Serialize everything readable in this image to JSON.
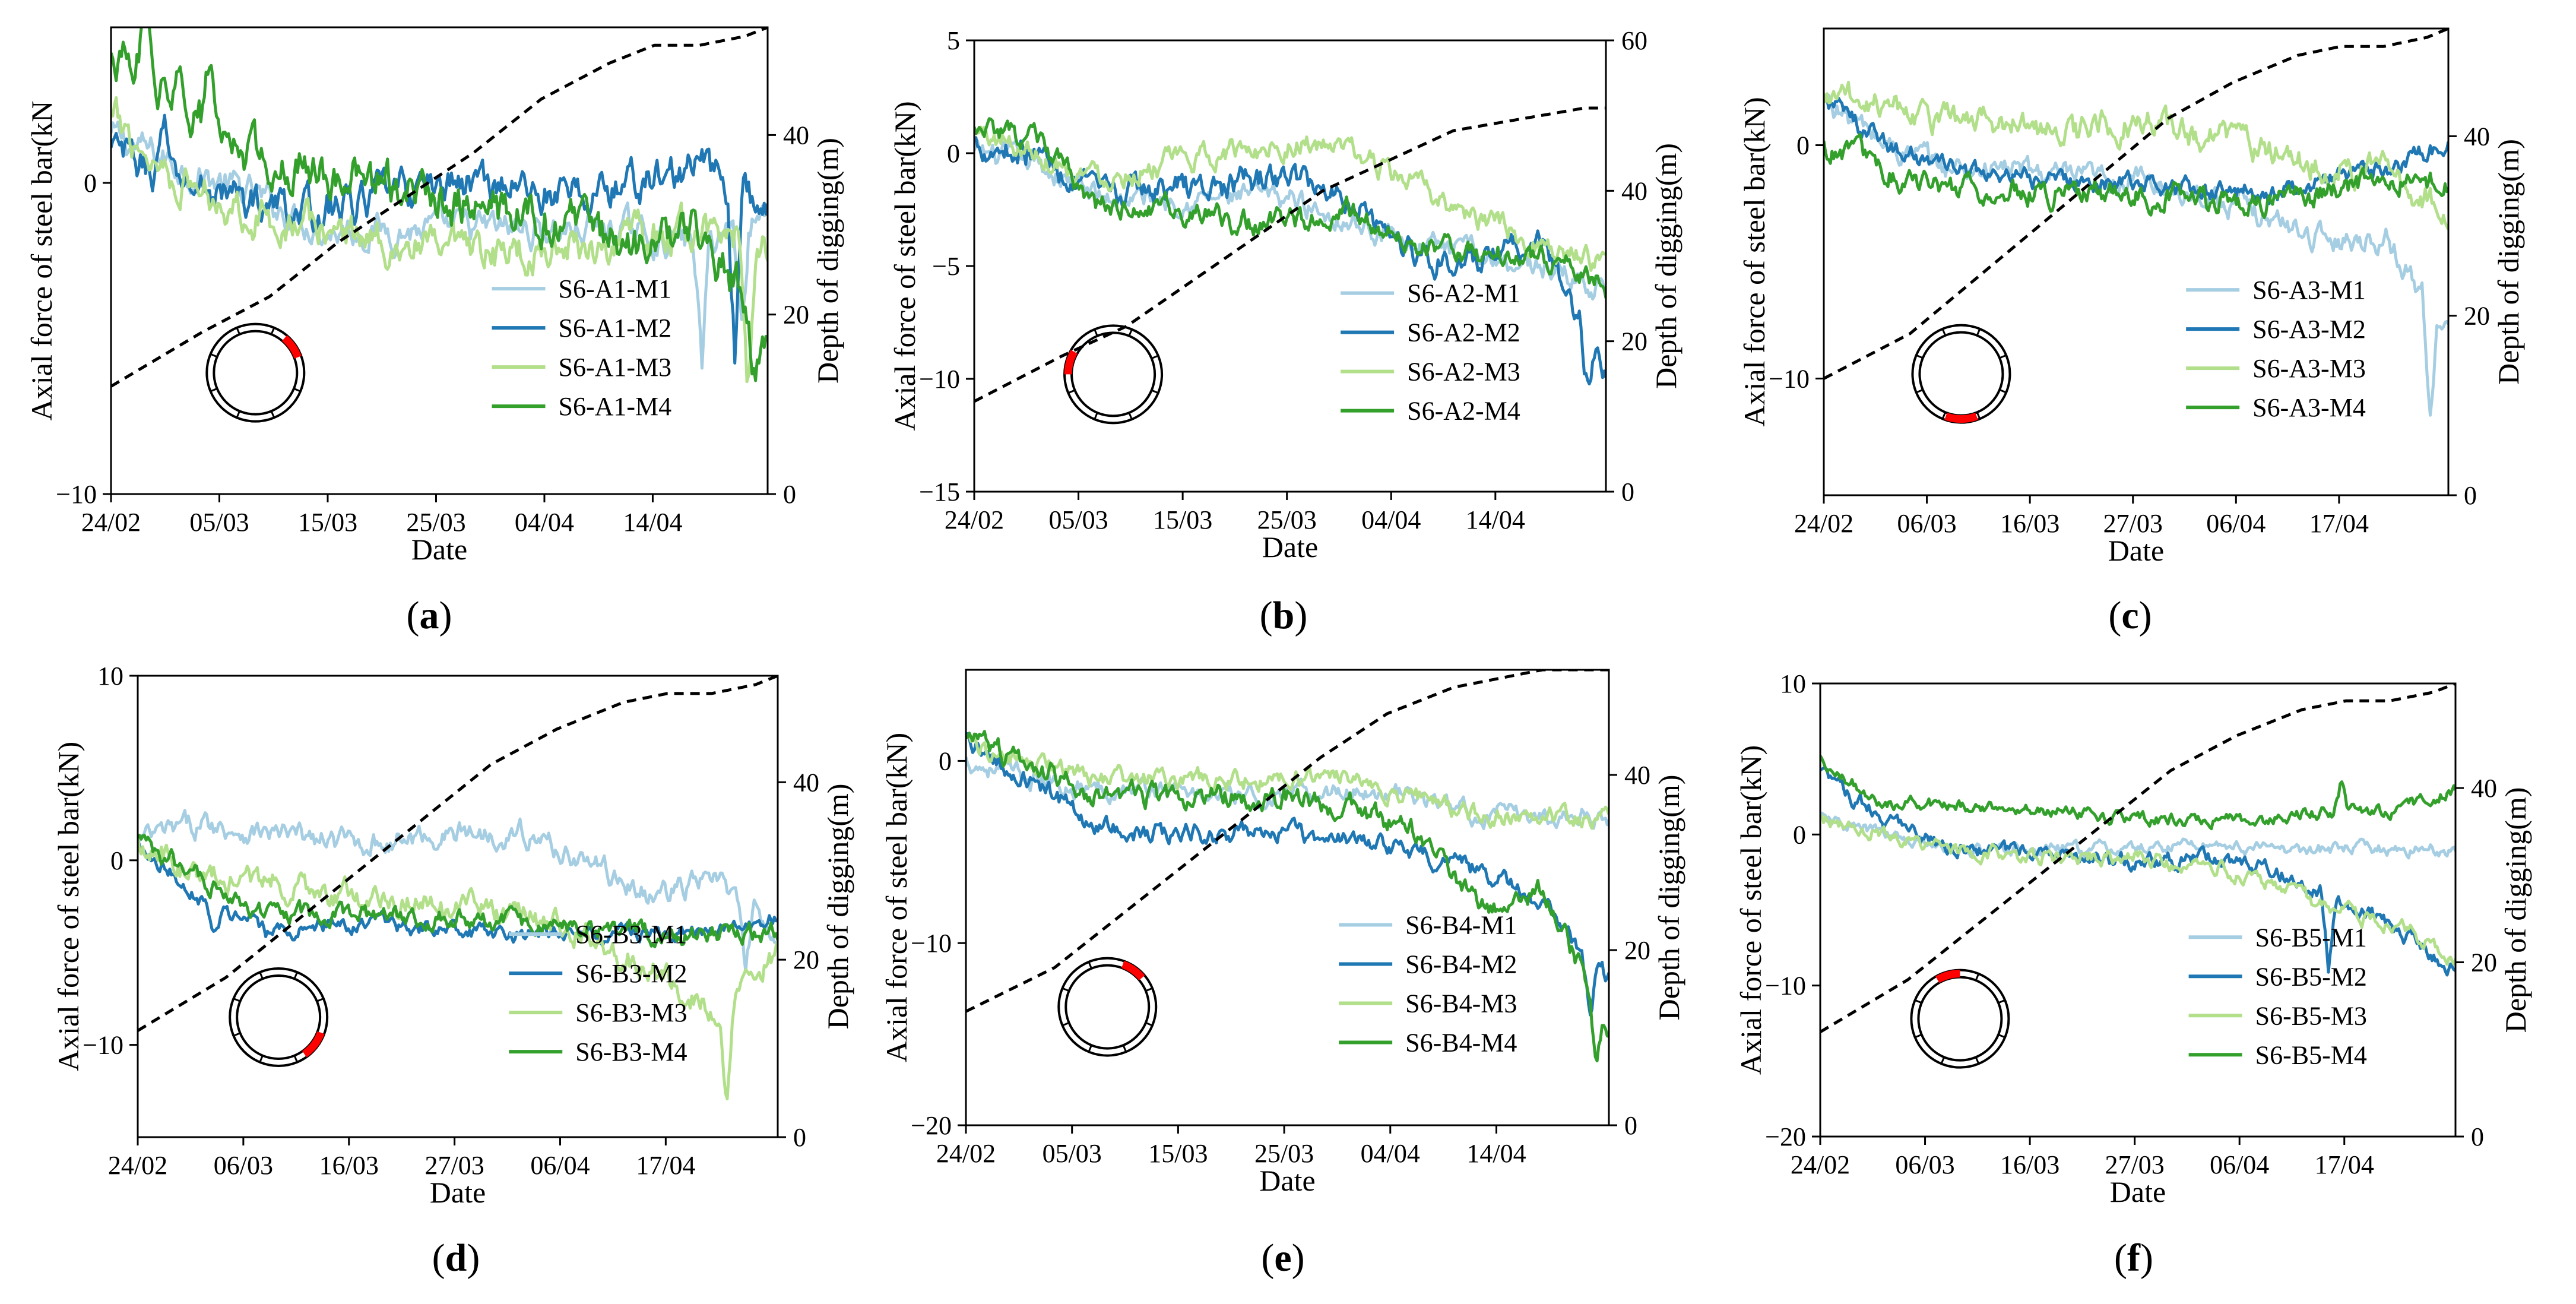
{
  "figure_colors": {
    "M1": "#a6cee3",
    "M2": "#1f78b4",
    "M3": "#b2df8a",
    "M4": "#33a02c",
    "depth": "#000000",
    "highlight": "#ff0000"
  },
  "chart_data": [
    {
      "id": "a",
      "caption_letter": "a",
      "type": "line",
      "xlabel": "Date",
      "ylabel": "Axial force of steel bar(kN",
      "y2label": "Depth of digging(m)",
      "xticks": [
        "24/02",
        "05/03",
        "15/03",
        "25/03",
        "04/04",
        "14/04"
      ],
      "xdays": 58,
      "ylim": [
        -10,
        5
      ],
      "yticks": [
        -10,
        0
      ],
      "y2lim": [
        0,
        52
      ],
      "y2ticks": [
        0,
        20,
        40
      ],
      "depth": {
        "x": [
          0,
          8,
          14,
          20,
          26,
          32,
          38,
          44,
          48,
          52,
          56,
          58
        ],
        "y": [
          12,
          18,
          22,
          28,
          33,
          38,
          44,
          48,
          50,
          50,
          51,
          52
        ]
      },
      "series": [
        {
          "name": "S6-A1-M1",
          "base": [
            1.5,
            0.5,
            -0.5,
            -1.5,
            -1.5,
            -1.5,
            -1.5,
            -1.5,
            -2,
            -1
          ],
          "noise": 0.5,
          "spikes": [
            [
              0.9,
              -4
            ],
            [
              0.96,
              -3
            ]
          ]
        },
        {
          "name": "S6-A1-M2",
          "base": [
            1,
            0,
            -0.5,
            -1,
            -0.5,
            0,
            0,
            -0.5,
            0,
            0.5,
            -1
          ],
          "noise": 0.6,
          "spikes": [
            [
              0.08,
              2
            ],
            [
              0.95,
              -5
            ]
          ]
        },
        {
          "name": "S6-A1-M3",
          "base": [
            2,
            0,
            -1,
            -1.5,
            -2,
            -2.5,
            -2,
            -2,
            -1.5,
            -2
          ],
          "noise": 0.6,
          "spikes": [
            [
              0.97,
              -5
            ]
          ]
        },
        {
          "name": "S6-A1-M4",
          "base": [
            4,
            3,
            1,
            0.5,
            0,
            -0.5,
            -1,
            -1.5,
            -2,
            -1.5,
            -5
          ],
          "noise": 0.7,
          "spikes": [
            [
              0.05,
              1.5
            ],
            [
              0.15,
              1.5
            ],
            [
              0.98,
              -2
            ]
          ]
        }
      ],
      "marker": [
        -50,
        -20
      ]
    },
    {
      "id": "b",
      "caption_letter": "b",
      "type": "line",
      "xlabel": "Date",
      "ylabel": "Axial force of steel bar(kN)",
      "y2label": "Depth of digging(m)",
      "xticks": [
        "24/02",
        "05/03",
        "15/03",
        "25/03",
        "04/04",
        "14/04"
      ],
      "xdays": 58,
      "ylim": [
        -15,
        5
      ],
      "yticks": [
        -15,
        -10,
        -5,
        0,
        5
      ],
      "y2lim": [
        0,
        60
      ],
      "y2ticks": [
        0,
        20,
        40,
        60
      ],
      "depth": {
        "x": [
          0,
          8,
          14,
          20,
          26,
          32,
          38,
          44,
          48,
          52,
          56,
          58
        ],
        "y": [
          12,
          18,
          22,
          28,
          34,
          40,
          44,
          48,
          49,
          50,
          51,
          51
        ]
      },
      "series": [
        {
          "name": "S6-A2-M1",
          "base": [
            0,
            -0.5,
            -2,
            -2,
            -2,
            -2,
            -3,
            -4,
            -4.5,
            -5,
            -6
          ],
          "noise": 0.5,
          "spikes": []
        },
        {
          "name": "S6-A2-M2",
          "base": [
            0.5,
            0,
            -2,
            -1.5,
            -1.5,
            -1,
            -2,
            -4.5,
            -5,
            -4,
            -10
          ],
          "noise": 0.6,
          "spikes": [
            [
              0.97,
              -2
            ]
          ]
        },
        {
          "name": "S6-A2-M3",
          "base": [
            1,
            0,
            -1,
            -0.5,
            0,
            0.5,
            0,
            -1.5,
            -3,
            -4,
            -5
          ],
          "noise": 0.5,
          "spikes": []
        },
        {
          "name": "S6-A2-M4",
          "base": [
            1,
            0.5,
            -2.5,
            -2.5,
            -3,
            -3,
            -2.5,
            -4,
            -4.5,
            -4.5,
            -6
          ],
          "noise": 0.5,
          "spikes": []
        }
      ],
      "marker": [
        180,
        210
      ]
    },
    {
      "id": "c",
      "caption_letter": "c",
      "type": "line",
      "xlabel": "Date",
      "ylabel": "Axial force of steel bar(kN)",
      "y2label": "Depth of digging(m)",
      "xticks": [
        "24/02",
        "06/03",
        "16/03",
        "27/03",
        "06/04",
        "17/04"
      ],
      "xdays": 58,
      "ylim": [
        -15,
        5
      ],
      "yticks": [
        -10,
        0
      ],
      "y2lim": [
        0,
        52
      ],
      "y2ticks": [
        0,
        20,
        40
      ],
      "depth": {
        "x": [
          0,
          8,
          14,
          20,
          26,
          32,
          38,
          44,
          48,
          52,
          56,
          58
        ],
        "y": [
          13,
          18,
          24,
          30,
          36,
          42,
          46,
          49,
          50,
          50,
          51,
          52
        ]
      },
      "series": [
        {
          "name": "S6-A3-M1",
          "base": [
            2,
            0,
            -1,
            -1,
            -1.5,
            -1.5,
            -2,
            -3,
            -4,
            -4,
            -8
          ],
          "noise": 0.5,
          "spikes": [
            [
              0.97,
              -5
            ]
          ]
        },
        {
          "name": "S6-A3-M2",
          "base": [
            2,
            0,
            -1,
            -1.5,
            -1.5,
            -1.5,
            -2,
            -2,
            -1.5,
            -1,
            0
          ],
          "noise": 0.4,
          "spikes": [
            [
              0.08,
              1
            ]
          ]
        },
        {
          "name": "S6-A3-M3",
          "base": [
            2,
            2,
            1,
            1,
            0.5,
            1,
            0.5,
            0,
            -1,
            -1,
            -3
          ],
          "noise": 0.6,
          "spikes": []
        },
        {
          "name": "S6-A3-M4",
          "base": [
            0,
            -1,
            -2,
            -2,
            -2,
            -2,
            -2.5,
            -2.5,
            -2,
            -1.5,
            -1.5
          ],
          "noise": 0.5,
          "spikes": []
        }
      ],
      "marker": [
        70,
        110
      ]
    },
    {
      "id": "d",
      "caption_letter": "d",
      "type": "line",
      "xlabel": "Date",
      "ylabel": "Axial force of steel bar(kN)",
      "y2label": "Depth of digging(m)",
      "xticks": [
        "24/02",
        "06/03",
        "16/03",
        "27/03",
        "06/04",
        "17/04"
      ],
      "xdays": 58,
      "ylim": [
        -15,
        10
      ],
      "yticks": [
        -10,
        0,
        10
      ],
      "y2lim": [
        0,
        52
      ],
      "y2ticks": [
        0,
        20,
        40
      ],
      "depth": {
        "x": [
          0,
          8,
          14,
          20,
          26,
          32,
          38,
          44,
          48,
          52,
          56,
          58
        ],
        "y": [
          12,
          18,
          24,
          30,
          36,
          42,
          46,
          49,
          50,
          50,
          51,
          52
        ]
      },
      "series": [
        {
          "name": "S6-B3-M1",
          "base": [
            1,
            2,
            1.5,
            1,
            1,
            1.5,
            1.5,
            0,
            -2,
            -1,
            -4
          ],
          "noise": 0.6,
          "spikes": [
            [
              0.95,
              -4
            ]
          ]
        },
        {
          "name": "S6-B3-M2",
          "base": [
            1,
            -2,
            -4,
            -3.5,
            -3.5,
            -4,
            -4,
            -4,
            -4,
            -4,
            -3
          ],
          "noise": 0.4,
          "spikes": [
            [
              0.12,
              -2
            ]
          ]
        },
        {
          "name": "S6-B3-M3",
          "base": [
            1,
            -1,
            -1,
            -2,
            -2,
            -2.5,
            -3,
            -4,
            -6,
            -8,
            -5
          ],
          "noise": 0.7,
          "spikes": [
            [
              0.92,
              -5
            ]
          ]
        },
        {
          "name": "S6-B3-M4",
          "base": [
            1,
            -1,
            -3,
            -3,
            -3,
            -3,
            -3.5,
            -3.5,
            -4,
            -4,
            -4
          ],
          "noise": 0.5,
          "spikes": []
        }
      ],
      "marker": [
        20,
        55
      ]
    },
    {
      "id": "e",
      "caption_letter": "e",
      "type": "line",
      "xlabel": "Date",
      "ylabel": "Axial force of steel bar(kN)",
      "y2label": "Depth of digging(m)",
      "xticks": [
        "24/02",
        "05/03",
        "15/03",
        "25/03",
        "04/04",
        "14/04"
      ],
      "xdays": 58,
      "ylim": [
        -20,
        5
      ],
      "yticks": [
        -20,
        -10,
        0
      ],
      "y2lim": [
        0,
        52
      ],
      "y2ticks": [
        0,
        20,
        40
      ],
      "depth": {
        "x": [
          0,
          8,
          14,
          20,
          26,
          32,
          38,
          44,
          48,
          52,
          56,
          58
        ],
        "y": [
          13,
          18,
          24,
          30,
          36,
          42,
          47,
          50,
          51,
          52,
          52,
          52
        ]
      },
      "series": [
        {
          "name": "S6-B4-M1",
          "base": [
            0,
            -1,
            -1.5,
            -1.5,
            -2,
            -2,
            -1.5,
            -2,
            -3,
            -3,
            -3
          ],
          "noise": 0.5,
          "spikes": []
        },
        {
          "name": "S6-B4-M2",
          "base": [
            1,
            -1,
            -3.5,
            -4,
            -4,
            -4,
            -4.5,
            -5,
            -6,
            -8,
            -12
          ],
          "noise": 0.5,
          "spikes": [
            [
              0.97,
              -3
            ]
          ]
        },
        {
          "name": "S6-B4-M3",
          "base": [
            1,
            0,
            -1,
            -1,
            -1,
            -1,
            -1,
            -2,
            -3,
            -3,
            -3
          ],
          "noise": 0.5,
          "spikes": []
        },
        {
          "name": "S6-B4-M4",
          "base": [
            1,
            0,
            -2,
            -2,
            -2,
            -2,
            -2.5,
            -4,
            -8,
            -7,
            -15
          ],
          "noise": 0.6,
          "spikes": [
            [
              0.98,
              -3
            ]
          ]
        }
      ],
      "marker": [
        -70,
        -40
      ]
    },
    {
      "id": "f",
      "caption_letter": "f",
      "type": "line",
      "xlabel": "Date",
      "ylabel": "Axial force of steel bar(kN)",
      "y2label": "Depth of digging(m)",
      "xticks": [
        "24/02",
        "06/03",
        "16/03",
        "27/03",
        "06/04",
        "17/04"
      ],
      "xdays": 58,
      "ylim": [
        -20,
        10
      ],
      "yticks": [
        -20,
        -10,
        0,
        10
      ],
      "y2lim": [
        0,
        52
      ],
      "y2ticks": [
        0,
        20,
        40
      ],
      "depth": {
        "x": [
          0,
          8,
          14,
          20,
          26,
          32,
          38,
          44,
          48,
          52,
          56,
          58
        ],
        "y": [
          12,
          18,
          24,
          30,
          36,
          42,
          46,
          49,
          50,
          50,
          51,
          52
        ]
      },
      "series": [
        {
          "name": "S6-B5-M1",
          "base": [
            1,
            0,
            -1,
            -1,
            -1,
            -1,
            -0.5,
            -1,
            -1,
            -1,
            -1
          ],
          "noise": 0.4,
          "spikes": []
        },
        {
          "name": "S6-B5-M2",
          "base": [
            4,
            1,
            -1,
            -1,
            -1.5,
            -2,
            -1.5,
            -2,
            -4,
            -6,
            -9
          ],
          "noise": 0.5,
          "spikes": [
            [
              0.8,
              -5
            ]
          ]
        },
        {
          "name": "S6-B5-M3",
          "base": [
            1,
            0,
            -1,
            -1.5,
            -1.5,
            -1.5,
            -2,
            -3,
            -5,
            -6,
            -8
          ],
          "noise": 0.5,
          "spikes": []
        },
        {
          "name": "S6-B5-M4",
          "base": [
            5,
            2,
            2,
            1.5,
            1.5,
            1,
            1,
            1,
            1.5,
            1.5,
            3
          ],
          "noise": 0.4,
          "spikes": [
            [
              0.82,
              2
            ]
          ]
        }
      ],
      "marker": [
        -120,
        -90
      ]
    }
  ]
}
